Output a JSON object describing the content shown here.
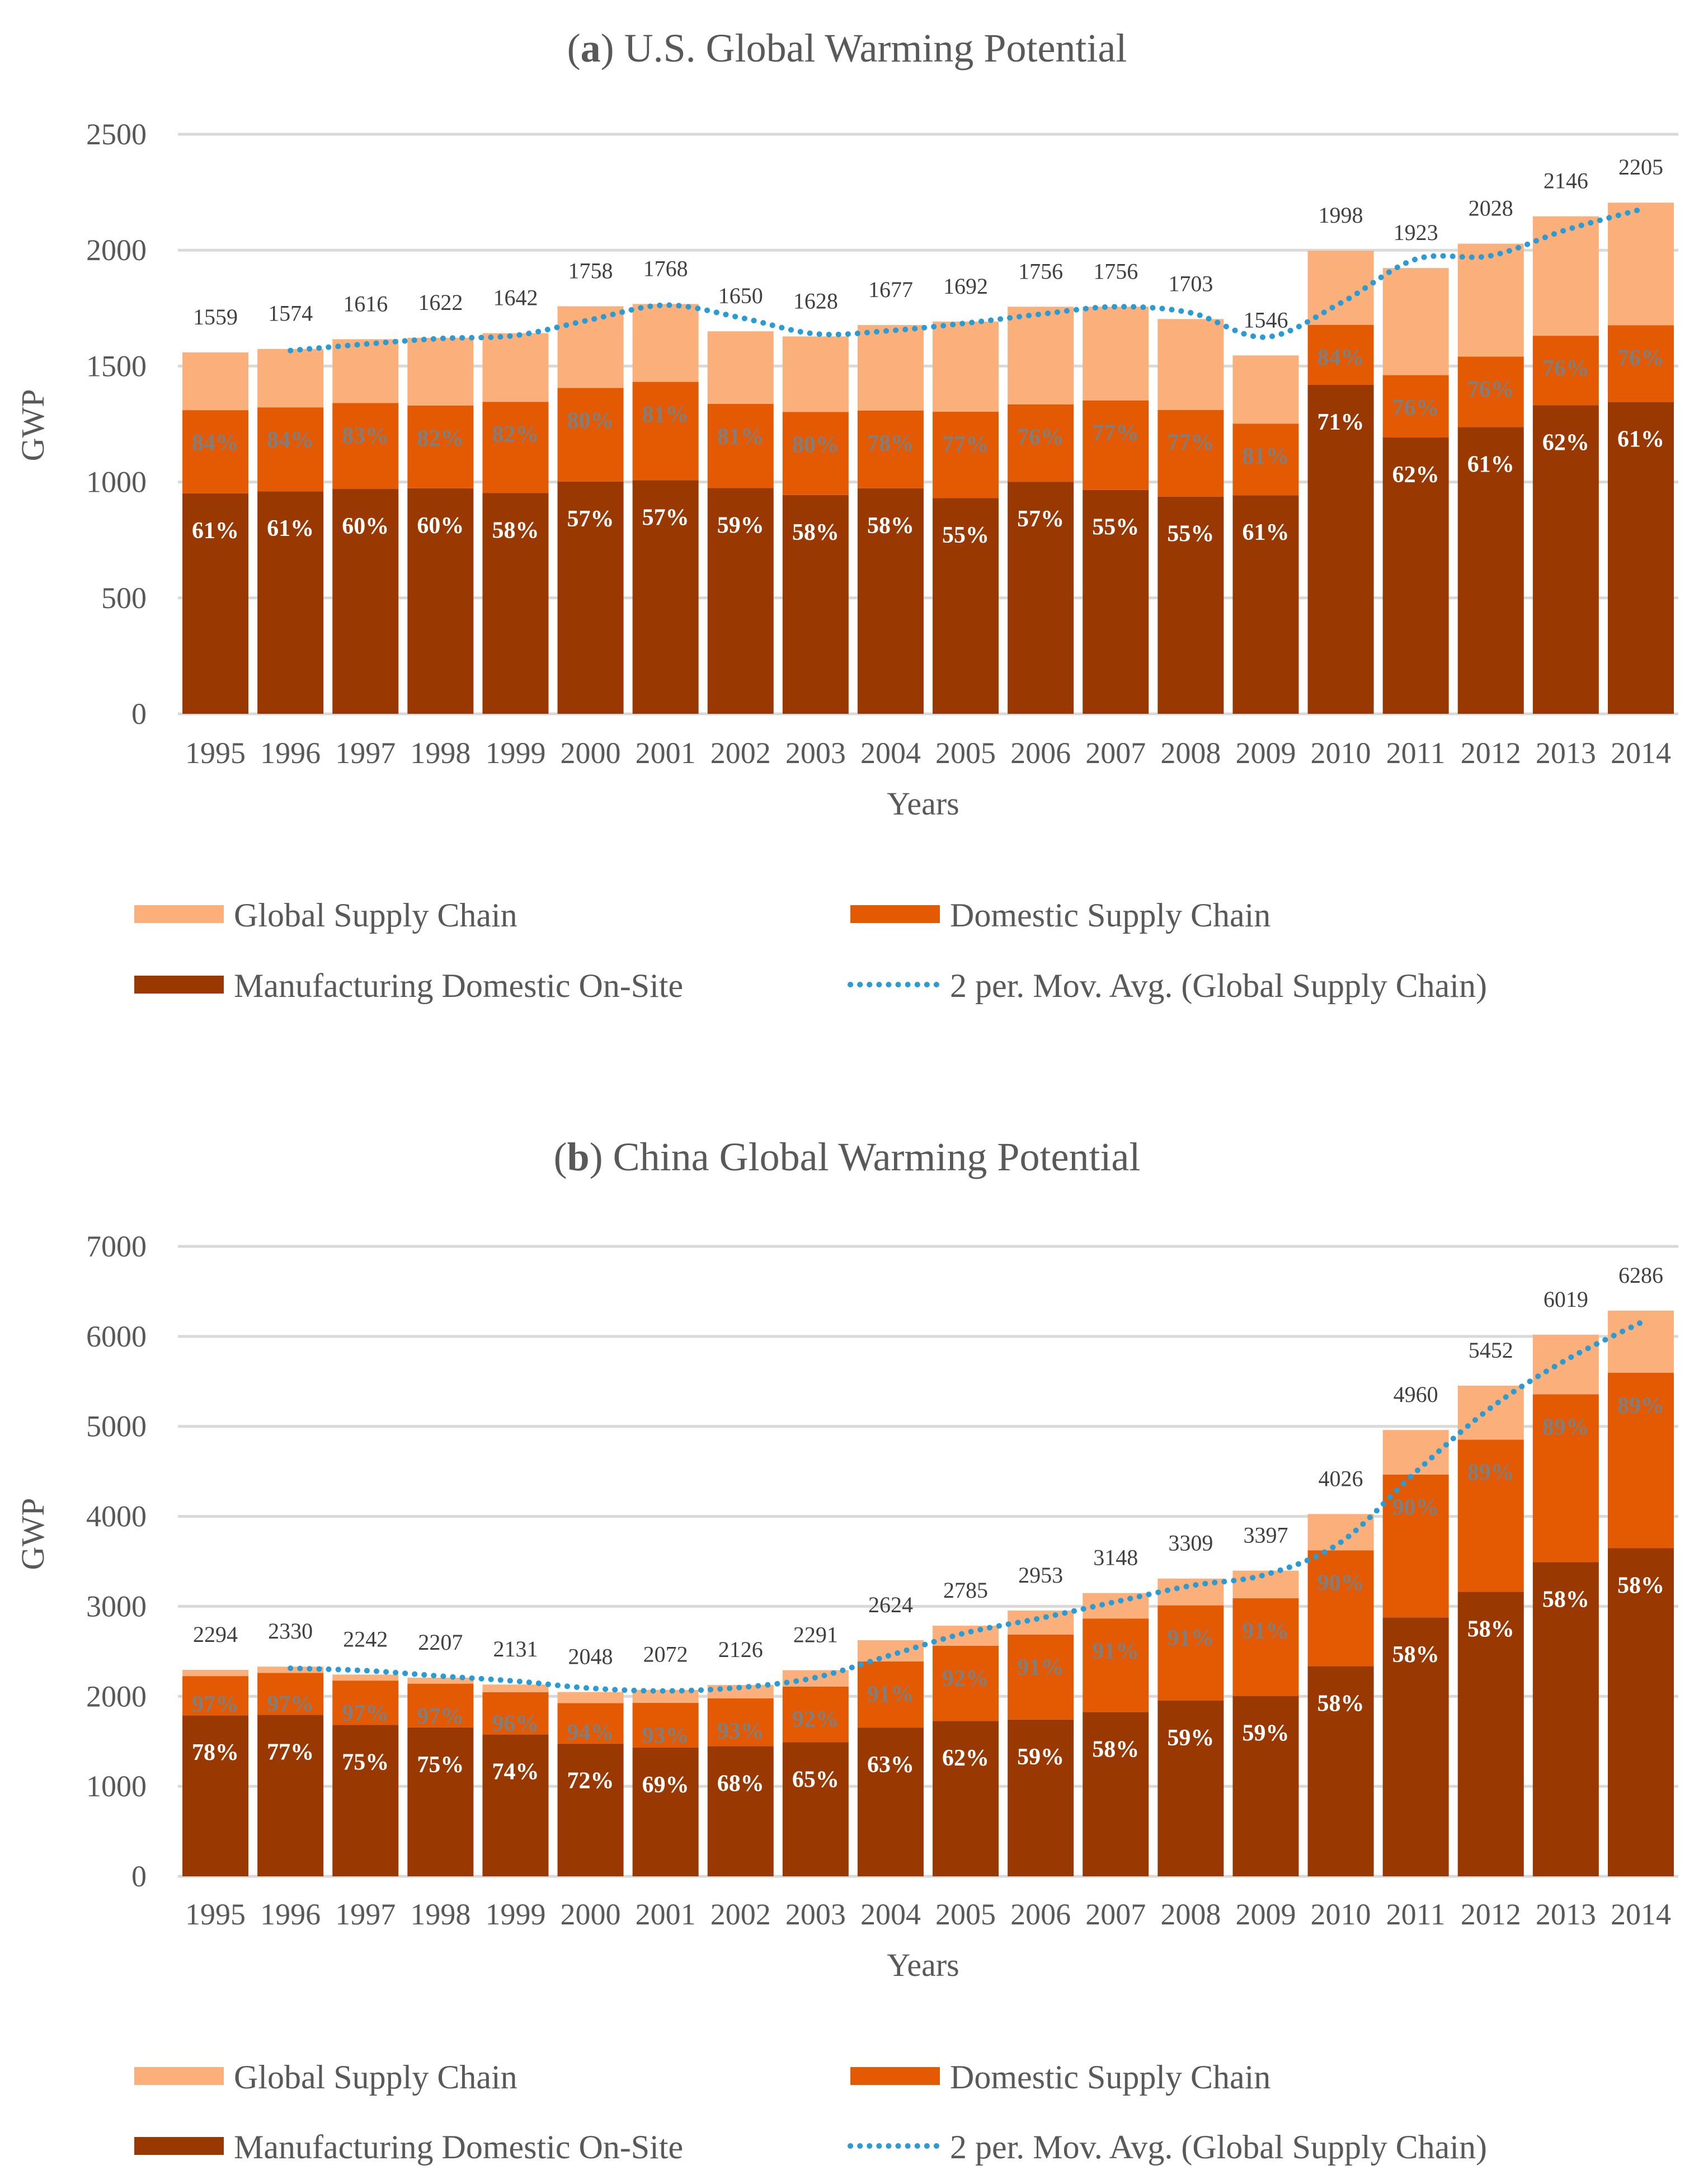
{
  "colors": {
    "global_supply_chain": "#fbb07c",
    "domestic_supply_chain": "#e35a02",
    "manufacturing_domestic_onsite": "#993800",
    "moving_average": "#2b9bd4"
  },
  "chart_data": [
    {
      "type": "bar",
      "stacked": true,
      "title_letter": "a",
      "title_rest": "U.S. Global Warming Potential",
      "xlabel": "Years",
      "ylabel": "GWP",
      "ylim": [
        0,
        2500
      ],
      "yticks": [
        "0",
        "500",
        "1000",
        "1500",
        "2000",
        "2500"
      ],
      "categories": [
        "1995",
        "1996",
        "1997",
        "1998",
        "1999",
        "2000",
        "2001",
        "2002",
        "2003",
        "2004",
        "2005",
        "2006",
        "2007",
        "2008",
        "2009",
        "2010",
        "2011",
        "2012",
        "2013",
        "2014"
      ],
      "totals": [
        1559,
        1574,
        1616,
        1622,
        1642,
        1758,
        1768,
        1650,
        1628,
        1677,
        1692,
        1756,
        1756,
        1703,
        1546,
        1998,
        1923,
        2028,
        2146,
        2205
      ],
      "domestic_share_labels": [
        "84%",
        "84%",
        "83%",
        "82%",
        "82%",
        "80%",
        "81%",
        "81%",
        "80%",
        "78%",
        "77%",
        "76%",
        "77%",
        "77%",
        "81%",
        "84%",
        "76%",
        "76%",
        "76%",
        "76%"
      ],
      "onsite_share_labels": [
        "61%",
        "61%",
        "60%",
        "60%",
        "58%",
        "57%",
        "57%",
        "59%",
        "58%",
        "58%",
        "55%",
        "57%",
        "55%",
        "55%",
        "61%",
        "71%",
        "62%",
        "61%",
        "62%",
        "61%"
      ],
      "series": [
        {
          "name": "Manufacturing Domestic On-Site",
          "values": [
            951,
            960,
            970,
            973,
            952,
            1002,
            1008,
            974,
            944,
            973,
            931,
            1001,
            966,
            937,
            943,
            1419,
            1192,
            1237,
            1331,
            1345
          ]
        },
        {
          "name": "Domestic Supply Chain",
          "values": [
            359,
            362,
            371,
            357,
            394,
            404,
            424,
            363,
            358,
            335,
            372,
            334,
            386,
            374,
            309,
            259,
            269,
            304,
            300,
            331
          ]
        },
        {
          "name": "Global Supply Chain",
          "values": [
            249,
            252,
            275,
            292,
            296,
            352,
            336,
            313,
            326,
            369,
            389,
            421,
            404,
            392,
            294,
            320,
            462,
            487,
            515,
            529
          ]
        }
      ],
      "moving_average": {
        "name": "2 per. Mov. Avg. (Global Supply Chain)",
        "values": [
          null,
          1567,
          1595,
          1619,
          1632,
          1700,
          1763,
          1709,
          1639,
          1653,
          1685,
          1724,
          1756,
          1730,
          1625,
          1772,
          1961,
          1976,
          2087,
          2176
        ]
      },
      "legend": {
        "global": "Global Supply Chain",
        "domestic": "Domestic Supply Chain",
        "onsite": "Manufacturing Domestic On-Site",
        "movavg": "2 per. Mov. Avg. (Global Supply Chain)"
      }
    },
    {
      "type": "bar",
      "stacked": true,
      "title_letter": "b",
      "title_rest": "China Global Warming Potential",
      "xlabel": "Years",
      "ylabel": "GWP",
      "ylim": [
        0,
        7000
      ],
      "yticks": [
        "0",
        "1000",
        "2000",
        "3000",
        "4000",
        "5000",
        "6000",
        "7000"
      ],
      "categories": [
        "1995",
        "1996",
        "1997",
        "1998",
        "1999",
        "2000",
        "2001",
        "2002",
        "2003",
        "2004",
        "2005",
        "2006",
        "2007",
        "2008",
        "2009",
        "2010",
        "2011",
        "2012",
        "2013",
        "2014"
      ],
      "totals": [
        2294,
        2330,
        2242,
        2207,
        2131,
        2048,
        2072,
        2126,
        2291,
        2624,
        2785,
        2953,
        3148,
        3309,
        3397,
        4026,
        4960,
        5452,
        6019,
        6286
      ],
      "domestic_share_labels": [
        "97%",
        "97%",
        "97%",
        "97%",
        "96%",
        "94%",
        "93%",
        "93%",
        "92%",
        "91%",
        "92%",
        "91%",
        "91%",
        "91%",
        "91%",
        "90%",
        "90%",
        "89%",
        "89%",
        "89%"
      ],
      "onsite_share_labels": [
        "78%",
        "77%",
        "75%",
        "75%",
        "74%",
        "72%",
        "69%",
        "68%",
        "65%",
        "63%",
        "62%",
        "59%",
        "58%",
        "59%",
        "59%",
        "58%",
        "58%",
        "58%",
        "58%",
        "58%"
      ],
      "series": [
        {
          "name": "Manufacturing Domestic On-Site",
          "values": [
            1789,
            1794,
            1682,
            1655,
            1577,
            1475,
            1430,
            1446,
            1489,
            1653,
            1727,
            1742,
            1826,
            1952,
            2004,
            2335,
            2877,
            3162,
            3491,
            3646
          ]
        },
        {
          "name": "Domestic Supply Chain",
          "values": [
            436,
            466,
            493,
            486,
            469,
            450,
            497,
            531,
            619,
            735,
            835,
            945,
            1039,
            1059,
            1087,
            1288,
            1587,
            1690,
            1866,
            1949
          ]
        },
        {
          "name": "Global Supply Chain",
          "values": [
            69,
            70,
            67,
            66,
            85,
            123,
            145,
            149,
            183,
            236,
            223,
            266,
            283,
            298,
            306,
            403,
            496,
            600,
            662,
            691
          ]
        }
      ],
      "moving_average": {
        "name": "2 per. Mov. Avg. (Global Supply Chain)",
        "values": [
          null,
          2312,
          2286,
          2225,
          2169,
          2090,
          2060,
          2099,
          2209,
          2458,
          2705,
          2869,
          3051,
          3229,
          3353,
          3712,
          4493,
          5206,
          5736,
          6153
        ]
      },
      "legend": {
        "global": "Global Supply Chain",
        "domestic": "Domestic Supply Chain",
        "onsite": "Manufacturing Domestic On-Site",
        "movavg": "2 per. Mov. Avg. (Global Supply Chain)"
      }
    }
  ]
}
